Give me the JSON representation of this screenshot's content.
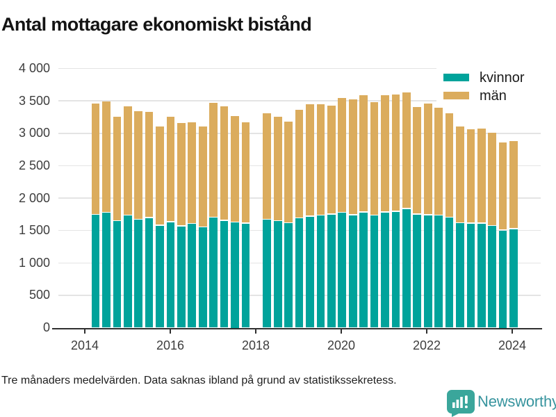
{
  "title": "Antal mottagare ekonomiskt bistånd",
  "footnote": "Tre månaders medelvärden. Data saknas ibland på grund av statistikssekretess.",
  "brand": {
    "name": "Newsworthy"
  },
  "colors": {
    "kvinnor": "#00a39b",
    "man": "#dbac5d",
    "axis": "#2f2f2f",
    "grid": "#e4e4e4",
    "brand_teal": "#3aa69b",
    "brand_text": "#37949e"
  },
  "legend": {
    "items": [
      {
        "label": "kvinnor",
        "color": "#00a39b"
      },
      {
        "label": "män",
        "color": "#dbac5d"
      }
    ]
  },
  "y_axis": {
    "tick_values": [
      0,
      500,
      1000,
      1500,
      2000,
      2500,
      3000,
      3500,
      4000
    ],
    "tick_labels": [
      "0",
      "500",
      "1 000",
      "1 500",
      "2 000",
      "2 500",
      "3 000",
      "3 500",
      "4 000"
    ]
  },
  "x_axis": {
    "tick_labels": [
      "2014",
      "2016",
      "2018",
      "2020",
      "2022",
      "2024"
    ]
  },
  "chart_data": {
    "type": "bar",
    "stacked": true,
    "title": "Antal mottagare ekonomiskt bistånd",
    "xlabel": "",
    "ylabel": "",
    "ylim": [
      0,
      4000
    ],
    "ytick_step": 500,
    "grid": true,
    "legend_position": "top-right",
    "note": "Tre månaders medelvärden. Data saknas ibland på grund av statistikssekretess.",
    "missing_categories": [
      "2018 Q1"
    ],
    "categories": [
      "2014 Q2",
      "2014 Q3",
      "2014 Q4",
      "2015 Q1",
      "2015 Q2",
      "2015 Q3",
      "2015 Q4",
      "2016 Q1",
      "2016 Q2",
      "2016 Q3",
      "2016 Q4",
      "2017 Q1",
      "2017 Q2",
      "2017 Q3",
      "2017 Q4",
      "2018 Q1",
      "2018 Q2",
      "2018 Q3",
      "2018 Q4",
      "2019 Q1",
      "2019 Q2",
      "2019 Q3",
      "2019 Q4",
      "2020 Q1",
      "2020 Q2",
      "2020 Q3",
      "2020 Q4",
      "2021 Q1",
      "2021 Q2",
      "2021 Q3",
      "2021 Q4",
      "2022 Q1",
      "2022 Q2",
      "2022 Q3",
      "2022 Q4",
      "2023 Q1",
      "2023 Q2",
      "2023 Q3",
      "2023 Q4",
      "2024 Q1"
    ],
    "series": [
      {
        "name": "kvinnor",
        "color": "#00a39b",
        "values": [
          1740,
          1770,
          1645,
          1730,
          1665,
          1690,
          1575,
          1630,
          1565,
          1600,
          1545,
          1695,
          1650,
          1625,
          1605,
          null,
          1665,
          1645,
          1610,
          1685,
          1715,
          1730,
          1745,
          1770,
          1735,
          1780,
          1730,
          1780,
          1790,
          1830,
          1745,
          1735,
          1730,
          1695,
          1610,
          1605,
          1605,
          1570,
          1500,
          1520
        ]
      },
      {
        "name": "män",
        "color": "#dbac5d",
        "values": [
          1720,
          1720,
          1615,
          1690,
          1680,
          1645,
          1530,
          1625,
          1595,
          1565,
          1560,
          1770,
          1765,
          1645,
          1565,
          null,
          1645,
          1605,
          1570,
          1675,
          1735,
          1720,
          1680,
          1770,
          1785,
          1810,
          1750,
          1810,
          1810,
          1800,
          1660,
          1720,
          1660,
          1610,
          1490,
          1460,
          1465,
          1440,
          1355,
          1355
        ]
      }
    ]
  }
}
